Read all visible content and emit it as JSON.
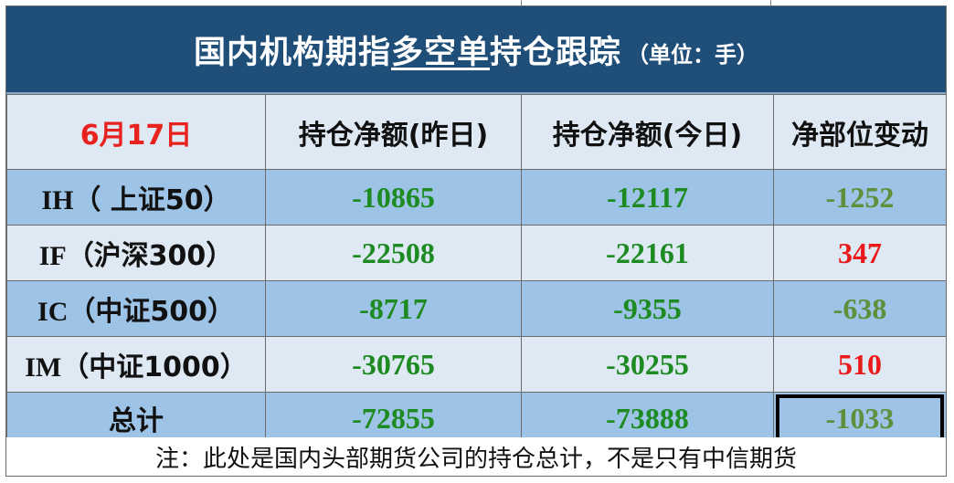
{
  "title": {
    "prefix": "国内机构期指",
    "underlined": "多空单",
    "suffix": "持仓跟踪",
    "unit": "（单位：手）"
  },
  "header": {
    "date": "6月17日",
    "col_yesterday": "持仓净额(昨日)",
    "col_today": "持仓净额(今日)",
    "col_change": "净部位变动"
  },
  "rows": [
    {
      "code": "IH",
      "name": "（ 上证50）",
      "yesterday": "-10865",
      "today": "-12117",
      "change": "-1252"
    },
    {
      "code": "IF",
      "name": "（沪深300）",
      "yesterday": "-22508",
      "today": "-22161",
      "change": "347"
    },
    {
      "code": "IC",
      "name": "（中证500）",
      "yesterday": "-8717",
      "today": "-9355",
      "change": "-638"
    },
    {
      "code": "IM",
      "name": "（中证1000）",
      "yesterday": "-30765",
      "today": "-30255",
      "change": "510"
    }
  ],
  "total": {
    "label": "总计",
    "yesterday": "-72855",
    "today": "-73888",
    "change": "-1033"
  },
  "note": "注：此处是国内头部期货公司的持仓总计，不是只有中信期货",
  "colors": {
    "title_bg": "#1f4e79",
    "header_bg": "#dee9f4",
    "row_dark_bg": "#9dc3e6",
    "negative_green": "#1e8b22",
    "negative_change_olive": "#5e8f3c",
    "positive_red": "#ea1a1a",
    "date_red": "#e8221f"
  }
}
